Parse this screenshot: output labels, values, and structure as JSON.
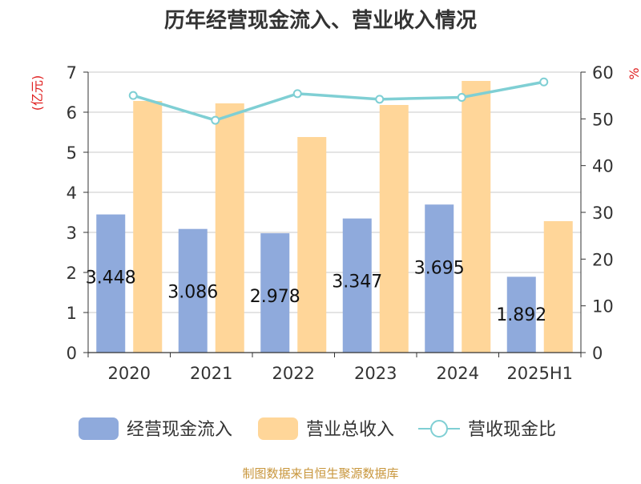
{
  "chart_data": {
    "type": "bar",
    "title": "历年经营现金流入、营业收入情况",
    "y_left_unit": "(亿元)",
    "y_right_unit": "%",
    "categories": [
      "2020",
      "2021",
      "2022",
      "2023",
      "2024",
      "2025H1"
    ],
    "series": [
      {
        "name": "经营现金流入",
        "type": "bar",
        "axis": "left",
        "color": "#8faadc",
        "values": [
          3.448,
          3.086,
          2.978,
          3.347,
          3.695,
          1.892
        ],
        "labels": [
          "3.448",
          "3.086",
          "2.978",
          "3.347",
          "3.695",
          "1.892"
        ]
      },
      {
        "name": "营业总收入",
        "type": "bar",
        "axis": "left",
        "color": "#ffd699",
        "values": [
          6.28,
          6.22,
          5.38,
          6.18,
          6.78,
          3.28
        ]
      },
      {
        "name": "营收现金比",
        "type": "line",
        "axis": "right",
        "color": "#7fcfd4",
        "values": [
          55.0,
          49.7,
          55.4,
          54.2,
          54.6,
          57.9
        ]
      }
    ],
    "y_left": {
      "min": 0,
      "max": 7,
      "ticks": [
        0,
        1,
        2,
        3,
        4,
        5,
        6,
        7
      ]
    },
    "y_right": {
      "min": 0,
      "max": 60,
      "ticks": [
        0,
        10,
        20,
        30,
        40,
        50,
        60
      ]
    },
    "grid": true,
    "legend_position": "bottom"
  },
  "source": "制图数据来自恒生聚源数据库"
}
